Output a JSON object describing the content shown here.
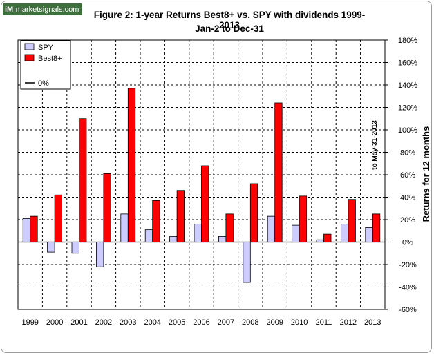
{
  "logo": {
    "mark": "iM",
    "text": "imarketsignals.com"
  },
  "chart_data": {
    "type": "bar",
    "title": "Figure 2:  1-year Returns Best8+ vs. SPY with dividends  1999-2013",
    "subtitle": "Jan-2 to Dec-31",
    "xlabel": "",
    "ylabel": "Returns for 12 months",
    "annotation": "to May-31-2013",
    "categories": [
      "1999",
      "2000",
      "2001",
      "2002",
      "2003",
      "2004",
      "2005",
      "2006",
      "2007",
      "2008",
      "2009",
      "2010",
      "2011",
      "2012",
      "2013"
    ],
    "series": [
      {
        "name": "SPY",
        "color": "#ccccff",
        "values": [
          21,
          -9,
          -10,
          -22,
          25,
          11,
          5,
          16,
          5,
          -36,
          23,
          15,
          2,
          16,
          13
        ]
      },
      {
        "name": "Best8+",
        "color": "#ff0000",
        "values": [
          23,
          42,
          110,
          61,
          137,
          37,
          46,
          68,
          25,
          52,
          124,
          41,
          7,
          38,
          25
        ]
      }
    ],
    "zero_line_label": "0%",
    "ylim": [
      -60,
      180
    ],
    "yticks": [
      -60,
      -40,
      -20,
      0,
      20,
      40,
      60,
      80,
      100,
      120,
      140,
      160,
      180
    ],
    "ytick_labels": [
      "-60%",
      "-40%",
      "-20%",
      "0%",
      "20%",
      "40%",
      "60%",
      "80%",
      "100%",
      "120%",
      "140%",
      "160%",
      "180%"
    ],
    "grid": true,
    "legend_position": "top-left",
    "y_axis_side": "right"
  }
}
